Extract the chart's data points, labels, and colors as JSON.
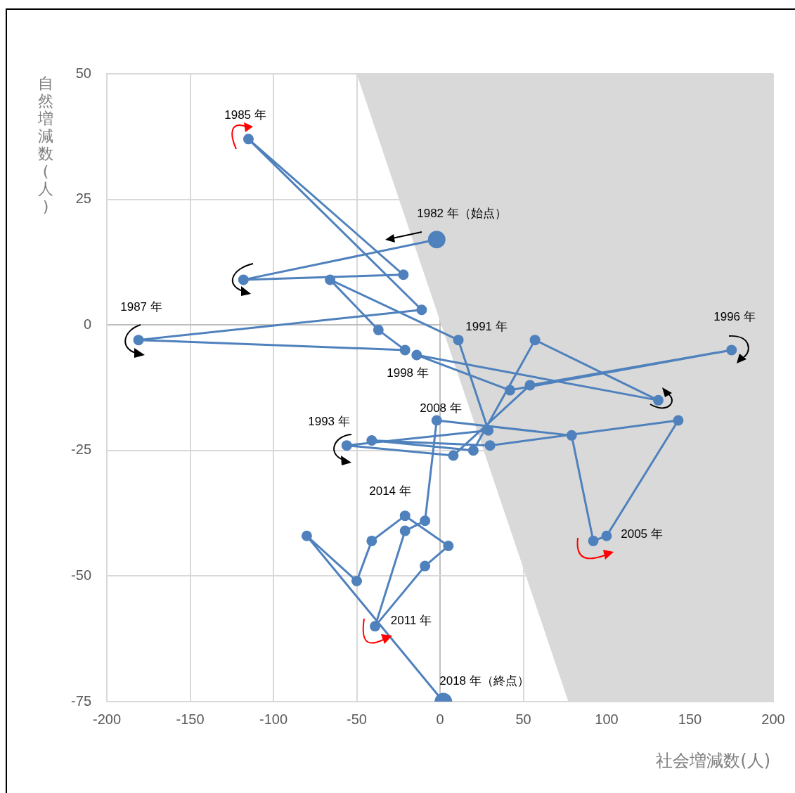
{
  "chart_data": {
    "type": "line",
    "xlabel": "社会増減数(人)",
    "ylabel": "自然増減数(人)",
    "xlim": [
      -200,
      200
    ],
    "xticks": [
      -200,
      -150,
      -100,
      -50,
      0,
      50,
      100,
      150,
      200
    ],
    "ylim": [
      -75,
      50
    ],
    "yticks": [
      -75,
      -50,
      -25,
      0,
      25,
      50
    ],
    "grid": true,
    "legend": false,
    "marker": "circle",
    "line_style": "solid",
    "series": [
      {
        "type": "area",
        "marker": "none",
        "color": "#d9d9d9",
        "x": [
          -50,
          77,
          200,
          200
        ],
        "values": [
          50,
          -75,
          -75,
          50
        ]
      },
      {
        "color": "#4f81bd",
        "x": [
          -2,
          -118,
          -22,
          -115,
          -11,
          -181,
          -21,
          -37,
          -66,
          11,
          29,
          -56,
          8,
          54,
          175,
          42,
          -14,
          131,
          57,
          20,
          -41,
          30,
          143,
          100,
          92,
          79,
          -2,
          -9,
          -21,
          -39,
          -9,
          5,
          -21,
          -41,
          -50,
          -80,
          2
        ],
        "values": [
          17,
          9,
          10,
          37,
          3,
          -3,
          -5,
          -1,
          9,
          -3,
          -21,
          -24,
          -26,
          -12,
          -5,
          -13,
          -6,
          -15,
          -3,
          -25,
          -23,
          -24,
          -19,
          -42,
          -43,
          -22,
          -19,
          -39,
          -41,
          -60,
          -48,
          -44,
          -38,
          -43,
          -51,
          -42,
          -75
        ]
      }
    ],
    "annotations": [
      "1985 年",
      "1982 年（始点）",
      "1987 年",
      "1991 年",
      "1996 年",
      "1998 年",
      "2008 年",
      "1993 年",
      "2014 年",
      "2005 年",
      "2011 年",
      "2018 年（終点）"
    ]
  }
}
